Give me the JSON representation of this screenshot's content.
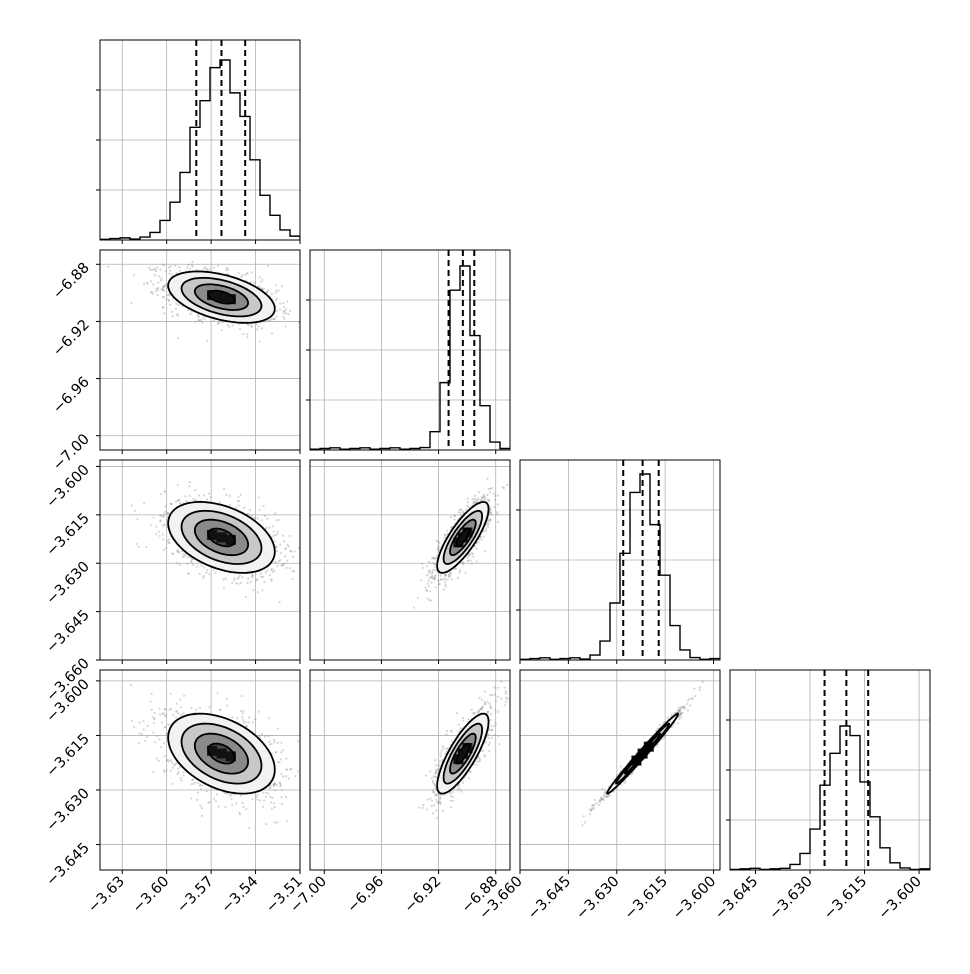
{
  "figure": {
    "type": "corner-plot",
    "n_params": 4
  },
  "chart_data": {
    "type": "corner",
    "axes": [
      {
        "id": "p0",
        "range": [
          -3.645,
          -3.51
        ],
        "ticks": [
          -3.63,
          -3.6,
          -3.57,
          -3.54,
          -3.51
        ],
        "tick_labels": [
          "−3.63",
          "−3.60",
          "−3.57",
          "−3.54",
          "−3.51"
        ],
        "quantiles": [
          -3.58,
          -3.563,
          -3.547
        ],
        "mean": -3.563,
        "sd": 0.018
      },
      {
        "id": "p1",
        "range": [
          -7.01,
          -6.87
        ],
        "ticks": [
          -7.0,
          -6.96,
          -6.92,
          -6.88
        ],
        "tick_labels": [
          "−7.00",
          "−6.96",
          "−6.92",
          "−6.88"
        ],
        "quantiles": [
          -6.913,
          -6.903,
          -6.895
        ],
        "mean": -6.903,
        "sd": 0.009
      },
      {
        "id": "p2",
        "range": [
          -3.66,
          -3.598
        ],
        "ticks": [
          -3.66,
          -3.645,
          -3.63,
          -3.615,
          -3.6
        ],
        "tick_labels": [
          "−3.660",
          "−3.645",
          "−3.630",
          "−3.615",
          "−3.600"
        ],
        "quantiles": [
          -3.628,
          -3.622,
          -3.617
        ],
        "mean": -3.622,
        "sd": 0.0055
      },
      {
        "id": "p3",
        "range": [
          -3.652,
          -3.597
        ],
        "ticks": [
          -3.645,
          -3.63,
          -3.615,
          -3.6
        ],
        "tick_labels": [
          "−3.645",
          "−3.630",
          "−3.615",
          "−3.600"
        ],
        "quantiles": [
          -3.626,
          -3.62,
          -3.614
        ],
        "mean": -3.62,
        "sd": 0.0055
      }
    ],
    "row_tick_overrides": {
      "3": {
        "ticks": [
          -3.645,
          -3.63,
          -3.615,
          -3.6,
          -3.66
        ],
        "tick_labels": [
          "−3.645",
          "−3.630",
          "−3.615",
          "−3.600",
          "−3.660"
        ]
      }
    },
    "correlations": [
      {
        "pair": [
          0,
          1
        ],
        "rho": -0.45
      },
      {
        "pair": [
          0,
          2
        ],
        "rho": -0.4
      },
      {
        "pair": [
          1,
          2
        ],
        "rho": 0.8
      },
      {
        "pair": [
          0,
          3
        ],
        "rho": -0.4
      },
      {
        "pair": [
          1,
          3
        ],
        "rho": 0.8
      },
      {
        "pair": [
          2,
          3
        ],
        "rho": 0.99
      }
    ],
    "histogram_bins": 20,
    "contour_levels_sigma": [
      0.5,
      1.0,
      1.5,
      2.0
    ],
    "grid": true,
    "colors": {
      "line": "#000000",
      "grid": "#b0b0b0",
      "scatter": "#888888",
      "frame": "#000000"
    }
  }
}
